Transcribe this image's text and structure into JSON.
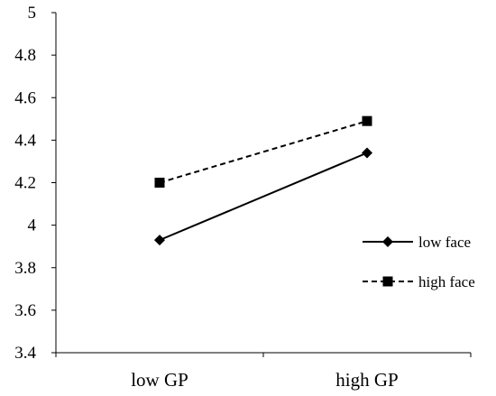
{
  "chart_data": {
    "type": "line",
    "categories": [
      "low GP",
      "high GP"
    ],
    "series": [
      {
        "name": "low face",
        "values": [
          3.93,
          4.34
        ],
        "marker": "diamond",
        "line_style": "solid",
        "color": "#000000"
      },
      {
        "name": "high face",
        "values": [
          4.2,
          4.49
        ],
        "marker": "square",
        "line_style": "dashed",
        "color": "#000000"
      }
    ],
    "title": "",
    "xlabel": "",
    "ylabel": "",
    "ylim": [
      3.4,
      5
    ],
    "yticks": [
      "3.4",
      "3.6",
      "3.8",
      "4",
      "4.2",
      "4.4",
      "4.6",
      "4.8",
      "5"
    ],
    "grid": false,
    "legend_position": "right"
  }
}
